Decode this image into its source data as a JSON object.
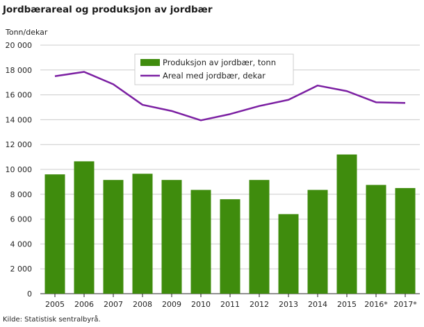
{
  "title": "Jordbærareal og produksjon av jordbær",
  "y_unit_label": "Tonn/dekar",
  "source": "Kilde: Statistisk sentralbyrå.",
  "chart_data": {
    "type": "bar",
    "categories": [
      "2005",
      "2006",
      "2007",
      "2008",
      "2009",
      "2010",
      "2011",
      "2012",
      "2013",
      "2014",
      "2015",
      "2016*",
      "2017*"
    ],
    "series": [
      {
        "name": "Produksjon av jordbær, tonn",
        "type": "bar",
        "color": "#3f8c0d",
        "values": [
          9600,
          10650,
          9150,
          9650,
          9150,
          8350,
          7600,
          9150,
          6400,
          8350,
          11200,
          8750,
          8500
        ]
      },
      {
        "name": "Areal med jordbær, dekar",
        "type": "line",
        "color": "#7b1fa2",
        "values": [
          17500,
          17850,
          16850,
          15200,
          14700,
          13950,
          14450,
          15100,
          15600,
          16750,
          16300,
          15400,
          15350
        ]
      }
    ],
    "ylim": [
      0,
      20000
    ],
    "yticks": [
      0,
      2000,
      4000,
      6000,
      8000,
      10000,
      12000,
      14000,
      16000,
      18000,
      20000
    ],
    "ytick_labels": [
      "0",
      "2 000",
      "4 000",
      "6 000",
      "8 000",
      "10 000",
      "12 000",
      "14 000",
      "16 000",
      "18 000",
      "20 000"
    ],
    "grid": true,
    "legend_position": "top-center"
  }
}
